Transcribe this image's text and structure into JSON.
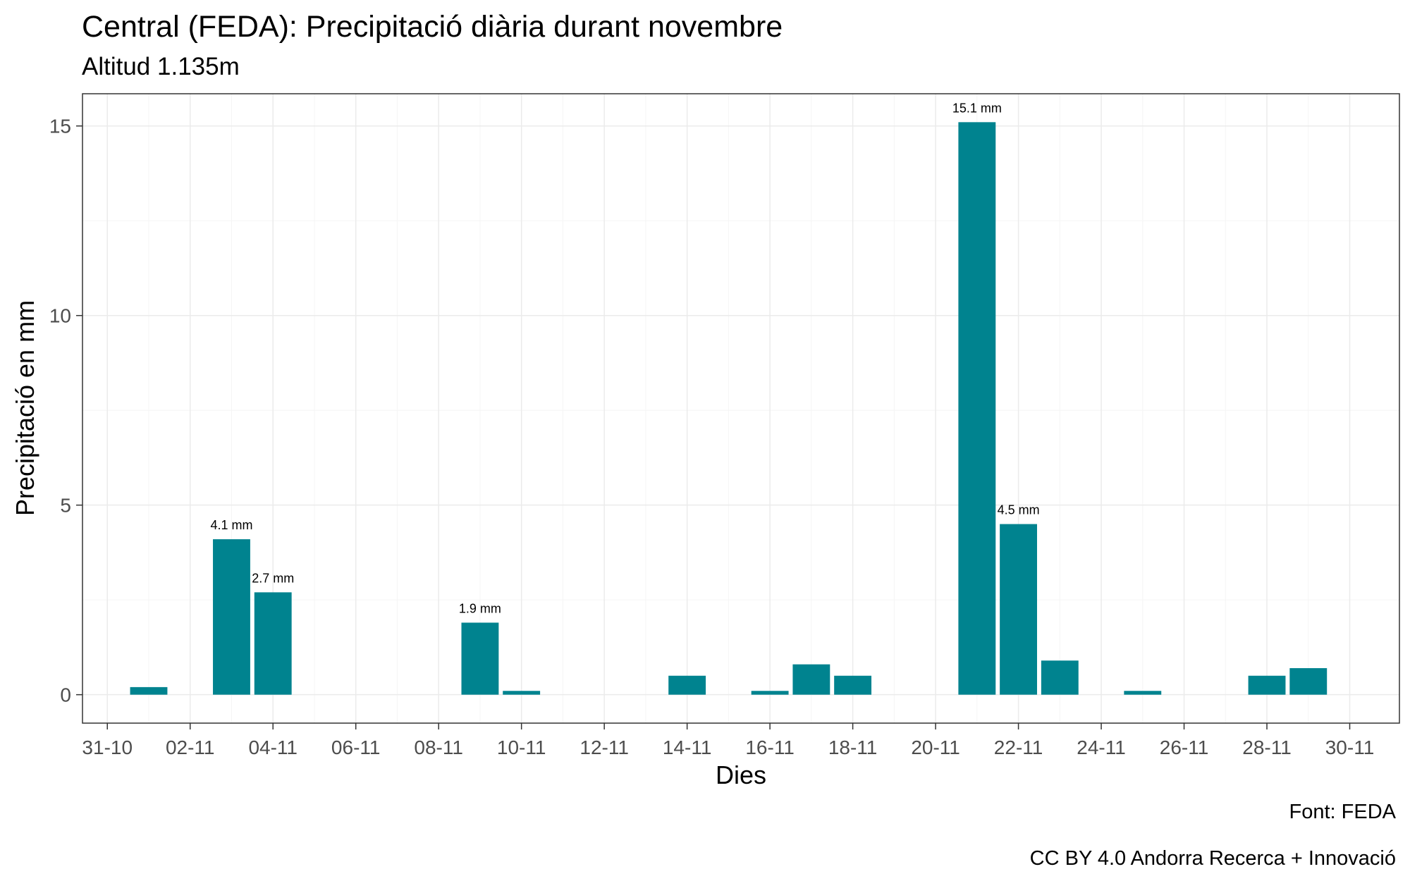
{
  "chart_data": {
    "type": "bar",
    "title": "Central (FEDA): Precipitació diària durant novembre",
    "subtitle": "Altitud 1.135m",
    "xlabel": "Dies",
    "ylabel": "Precipitació en mm",
    "caption_source": "Font: FEDA",
    "caption_license": "CC BY 4.0 Andorra Recerca + Innovació",
    "x_ticks": [
      "31-10",
      "02-11",
      "04-11",
      "06-11",
      "08-11",
      "10-11",
      "12-11",
      "14-11",
      "16-11",
      "18-11",
      "20-11",
      "22-11",
      "24-11",
      "26-11",
      "28-11",
      "30-11"
    ],
    "y_ticks": [
      0,
      5,
      10,
      15
    ],
    "ylim": [
      -0.75,
      15.85
    ],
    "xlim_days": [
      -0.6,
      31.2
    ],
    "grid": true,
    "bar_color": "#00838F",
    "series": [
      {
        "x": [
          1,
          3,
          4,
          9,
          10,
          14,
          16,
          17,
          18,
          21,
          22,
          23,
          25,
          28,
          29
        ],
        "values": [
          0.2,
          4.1,
          2.7,
          1.9,
          0.1,
          0.5,
          0.1,
          0.8,
          0.5,
          15.1,
          4.5,
          0.9,
          0.1,
          0.5,
          0.7
        ],
        "labels": [
          "",
          "4.1 mm",
          "2.7 mm",
          "1.9 mm",
          "",
          "",
          "",
          "",
          "",
          "15.1 mm",
          "4.5 mm",
          "",
          "",
          "",
          ""
        ]
      }
    ]
  }
}
